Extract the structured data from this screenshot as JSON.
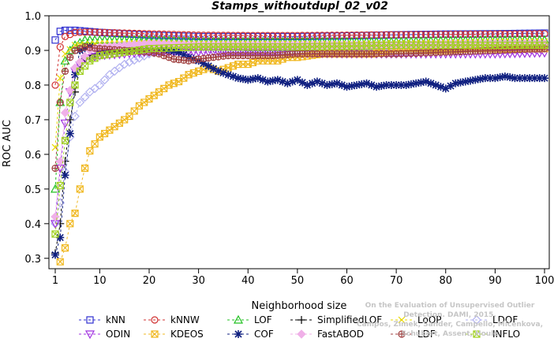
{
  "chart_data": {
    "type": "line",
    "title": "Stamps_withoutdupl_02_v02",
    "xlabel": "Neighborhood size",
    "ylabel": "ROC AUC",
    "xlim": [
      1,
      100
    ],
    "ylim": [
      0.27,
      1.0
    ],
    "xticks": [
      1,
      10,
      20,
      30,
      40,
      50,
      60,
      70,
      80,
      90,
      100
    ],
    "yticks": [
      0.3,
      0.4,
      0.5,
      0.6,
      0.7,
      0.8,
      0.9,
      1.0
    ],
    "grid": false,
    "legend_position": "bottom",
    "series": [
      {
        "name": "kNN",
        "color": "#3030d0",
        "marker": "square",
        "points": [
          [
            1,
            0.93
          ],
          [
            2,
            0.955
          ],
          [
            3,
            0.958
          ],
          [
            5,
            0.958
          ],
          [
            10,
            0.952
          ],
          [
            20,
            0.944
          ],
          [
            30,
            0.94
          ],
          [
            40,
            0.94
          ],
          [
            50,
            0.94
          ],
          [
            60,
            0.942
          ],
          [
            70,
            0.945
          ],
          [
            80,
            0.947
          ],
          [
            90,
            0.948
          ],
          [
            100,
            0.95
          ]
        ]
      },
      {
        "name": "kNNW",
        "color": "#d03030",
        "marker": "circle",
        "points": [
          [
            1,
            0.8
          ],
          [
            2,
            0.91
          ],
          [
            3,
            0.94
          ],
          [
            5,
            0.952
          ],
          [
            8,
            0.953
          ],
          [
            10,
            0.952
          ],
          [
            20,
            0.948
          ],
          [
            30,
            0.944
          ],
          [
            40,
            0.943
          ],
          [
            50,
            0.943
          ],
          [
            60,
            0.944
          ],
          [
            70,
            0.945
          ],
          [
            80,
            0.946
          ],
          [
            90,
            0.947
          ],
          [
            100,
            0.948
          ]
        ]
      },
      {
        "name": "LOF",
        "color": "#20c020",
        "marker": "triangle-up",
        "points": [
          [
            1,
            0.5
          ],
          [
            2,
            0.75
          ],
          [
            3,
            0.87
          ],
          [
            4,
            0.9
          ],
          [
            5,
            0.915
          ],
          [
            7,
            0.93
          ],
          [
            10,
            0.93
          ],
          [
            15,
            0.93
          ],
          [
            20,
            0.93
          ],
          [
            30,
            0.925
          ],
          [
            40,
            0.925
          ],
          [
            50,
            0.925
          ],
          [
            60,
            0.925
          ],
          [
            70,
            0.925
          ],
          [
            80,
            0.928
          ],
          [
            90,
            0.93
          ],
          [
            100,
            0.93
          ]
        ]
      },
      {
        "name": "SimplifiedLOF",
        "color": "#000000",
        "marker": "plus",
        "points": [
          [
            1,
            0.315
          ],
          [
            2,
            0.4
          ],
          [
            3,
            0.58
          ],
          [
            4,
            0.7
          ],
          [
            5,
            0.78
          ],
          [
            6,
            0.85
          ],
          [
            7,
            0.875
          ],
          [
            8,
            0.885
          ],
          [
            10,
            0.895
          ],
          [
            12,
            0.9
          ],
          [
            15,
            0.905
          ],
          [
            20,
            0.91
          ],
          [
            25,
            0.915
          ],
          [
            30,
            0.91
          ],
          [
            35,
            0.905
          ],
          [
            40,
            0.9
          ],
          [
            50,
            0.9
          ],
          [
            60,
            0.9
          ],
          [
            70,
            0.9
          ],
          [
            80,
            0.902
          ],
          [
            90,
            0.905
          ],
          [
            100,
            0.91
          ]
        ]
      },
      {
        "name": "LoOP",
        "color": "#e8d800",
        "marker": "x",
        "points": [
          [
            1,
            0.62
          ],
          [
            2,
            0.82
          ],
          [
            3,
            0.89
          ],
          [
            5,
            0.915
          ],
          [
            10,
            0.92
          ],
          [
            20,
            0.92
          ],
          [
            30,
            0.918
          ],
          [
            40,
            0.918
          ],
          [
            50,
            0.918
          ],
          [
            60,
            0.918
          ],
          [
            70,
            0.92
          ],
          [
            80,
            0.922
          ],
          [
            90,
            0.925
          ],
          [
            100,
            0.925
          ]
        ]
      },
      {
        "name": "LDOF",
        "color": "#b0b0f0",
        "marker": "diamond",
        "points": [
          [
            1,
            0.4
          ],
          [
            2,
            0.46
          ],
          [
            3,
            0.55
          ],
          [
            4,
            0.65
          ],
          [
            5,
            0.71
          ],
          [
            6,
            0.75
          ],
          [
            8,
            0.78
          ],
          [
            10,
            0.8
          ],
          [
            12,
            0.83
          ],
          [
            15,
            0.86
          ],
          [
            20,
            0.89
          ],
          [
            25,
            0.905
          ],
          [
            30,
            0.91
          ],
          [
            40,
            0.91
          ],
          [
            50,
            0.91
          ],
          [
            60,
            0.91
          ],
          [
            70,
            0.912
          ],
          [
            80,
            0.915
          ],
          [
            90,
            0.915
          ],
          [
            100,
            0.915
          ]
        ]
      },
      {
        "name": "ODIN",
        "color": "#a030e0",
        "marker": "triangle-down",
        "points": [
          [
            1,
            0.4
          ],
          [
            2,
            0.56
          ],
          [
            3,
            0.69
          ],
          [
            4,
            0.78
          ],
          [
            5,
            0.84
          ],
          [
            7,
            0.875
          ],
          [
            10,
            0.885
          ],
          [
            15,
            0.89
          ],
          [
            20,
            0.895
          ],
          [
            30,
            0.895
          ],
          [
            40,
            0.895
          ],
          [
            50,
            0.892
          ],
          [
            60,
            0.89
          ],
          [
            70,
            0.89
          ],
          [
            80,
            0.89
          ],
          [
            90,
            0.89
          ],
          [
            100,
            0.893
          ]
        ]
      },
      {
        "name": "KDEOS",
        "color": "#f0b820",
        "marker": "square-x",
        "points": [
          [
            2,
            0.29
          ],
          [
            3,
            0.33
          ],
          [
            4,
            0.4
          ],
          [
            5,
            0.43
          ],
          [
            6,
            0.5
          ],
          [
            7,
            0.56
          ],
          [
            8,
            0.61
          ],
          [
            10,
            0.65
          ],
          [
            12,
            0.67
          ],
          [
            14,
            0.69
          ],
          [
            16,
            0.71
          ],
          [
            18,
            0.74
          ],
          [
            20,
            0.76
          ],
          [
            22,
            0.78
          ],
          [
            24,
            0.8
          ],
          [
            26,
            0.81
          ],
          [
            28,
            0.83
          ],
          [
            30,
            0.84
          ],
          [
            32,
            0.85
          ],
          [
            34,
            0.84
          ],
          [
            36,
            0.85
          ],
          [
            38,
            0.86
          ],
          [
            40,
            0.86
          ],
          [
            42,
            0.87
          ],
          [
            44,
            0.87
          ],
          [
            46,
            0.87
          ],
          [
            48,
            0.88
          ],
          [
            50,
            0.88
          ],
          [
            55,
            0.89
          ],
          [
            60,
            0.89
          ],
          [
            65,
            0.89
          ],
          [
            70,
            0.9
          ],
          [
            75,
            0.9
          ],
          [
            80,
            0.9
          ],
          [
            85,
            0.905
          ],
          [
            90,
            0.905
          ],
          [
            95,
            0.905
          ],
          [
            100,
            0.905
          ]
        ]
      },
      {
        "name": "COF",
        "color": "#102080",
        "marker": "asterisk",
        "points": [
          [
            1,
            0.31
          ],
          [
            2,
            0.36
          ],
          [
            3,
            0.54
          ],
          [
            4,
            0.66
          ],
          [
            5,
            0.83
          ],
          [
            6,
            0.9
          ],
          [
            8,
            0.91
          ],
          [
            10,
            0.9
          ],
          [
            12,
            0.9
          ],
          [
            15,
            0.9
          ],
          [
            18,
            0.9
          ],
          [
            20,
            0.905
          ],
          [
            22,
            0.905
          ],
          [
            24,
            0.9
          ],
          [
            26,
            0.895
          ],
          [
            28,
            0.88
          ],
          [
            30,
            0.87
          ],
          [
            32,
            0.855
          ],
          [
            34,
            0.84
          ],
          [
            36,
            0.83
          ],
          [
            38,
            0.82
          ],
          [
            40,
            0.815
          ],
          [
            42,
            0.82
          ],
          [
            44,
            0.81
          ],
          [
            46,
            0.815
          ],
          [
            48,
            0.805
          ],
          [
            50,
            0.815
          ],
          [
            52,
            0.8
          ],
          [
            54,
            0.81
          ],
          [
            56,
            0.8
          ],
          [
            58,
            0.805
          ],
          [
            60,
            0.795
          ],
          [
            62,
            0.8
          ],
          [
            64,
            0.805
          ],
          [
            66,
            0.795
          ],
          [
            68,
            0.8
          ],
          [
            70,
            0.8
          ],
          [
            72,
            0.8
          ],
          [
            74,
            0.805
          ],
          [
            76,
            0.81
          ],
          [
            78,
            0.8
          ],
          [
            80,
            0.79
          ],
          [
            82,
            0.805
          ],
          [
            84,
            0.81
          ],
          [
            86,
            0.815
          ],
          [
            88,
            0.82
          ],
          [
            90,
            0.82
          ],
          [
            92,
            0.825
          ],
          [
            94,
            0.82
          ],
          [
            96,
            0.82
          ],
          [
            98,
            0.82
          ],
          [
            100,
            0.82
          ]
        ]
      },
      {
        "name": "FastABOD",
        "color": "#f0b0e8",
        "marker": "diamond-filled",
        "points": [
          [
            1,
            0.42
          ],
          [
            2,
            0.58
          ],
          [
            3,
            0.72
          ],
          [
            5,
            0.85
          ],
          [
            8,
            0.9
          ],
          [
            10,
            0.91
          ],
          [
            20,
            0.92
          ],
          [
            30,
            0.915
          ],
          [
            40,
            0.915
          ],
          [
            50,
            0.915
          ],
          [
            60,
            0.915
          ],
          [
            70,
            0.915
          ],
          [
            80,
            0.918
          ],
          [
            90,
            0.92
          ],
          [
            100,
            0.92
          ]
        ]
      },
      {
        "name": "LDF",
        "color": "#a04040",
        "marker": "circle-plus",
        "points": [
          [
            1,
            0.56
          ],
          [
            2,
            0.75
          ],
          [
            3,
            0.84
          ],
          [
            4,
            0.88
          ],
          [
            5,
            0.9
          ],
          [
            7,
            0.91
          ],
          [
            10,
            0.905
          ],
          [
            15,
            0.9
          ],
          [
            20,
            0.895
          ],
          [
            22,
            0.89
          ],
          [
            25,
            0.875
          ],
          [
            28,
            0.87
          ],
          [
            30,
            0.875
          ],
          [
            33,
            0.88
          ],
          [
            36,
            0.885
          ],
          [
            40,
            0.885
          ],
          [
            45,
            0.885
          ],
          [
            50,
            0.89
          ],
          [
            60,
            0.89
          ],
          [
            70,
            0.89
          ],
          [
            80,
            0.895
          ],
          [
            90,
            0.9
          ],
          [
            100,
            0.905
          ]
        ]
      },
      {
        "name": "INFLO",
        "color": "#a0d020",
        "marker": "square-x",
        "points": [
          [
            1,
            0.37
          ],
          [
            2,
            0.51
          ],
          [
            3,
            0.64
          ],
          [
            4,
            0.75
          ],
          [
            5,
            0.8
          ],
          [
            6,
            0.84
          ],
          [
            8,
            0.87
          ],
          [
            10,
            0.885
          ],
          [
            15,
            0.895
          ],
          [
            20,
            0.905
          ],
          [
            30,
            0.91
          ],
          [
            40,
            0.91
          ],
          [
            50,
            0.91
          ],
          [
            60,
            0.912
          ],
          [
            70,
            0.915
          ],
          [
            80,
            0.915
          ],
          [
            90,
            0.915
          ],
          [
            100,
            0.915
          ]
        ]
      }
    ],
    "legend_order": [
      "kNN",
      "kNNW",
      "LOF",
      "SimplifiedLOF",
      "LoOP",
      "LDOF",
      "ODIN",
      "KDEOS",
      "COF",
      "FastABOD",
      "LDF",
      "INFLO"
    ]
  },
  "watermark": {
    "line1": "Campos, Zimek, Sander, Campello, Micenkova, Schubert, Assent, Houle",
    "line2": "On the Evaluation of Unsupervised Outlier Detection. DAMI, 2015."
  }
}
